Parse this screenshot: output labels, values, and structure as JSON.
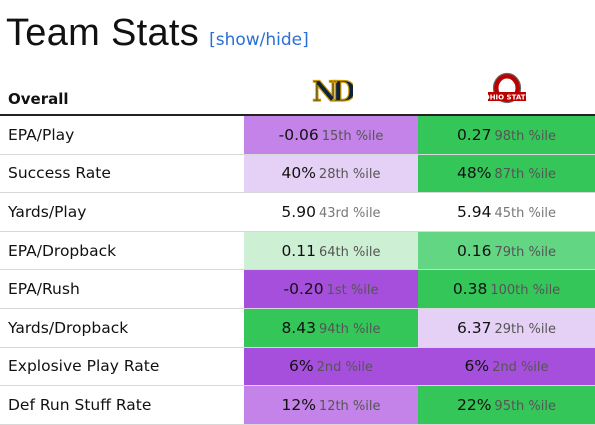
{
  "header": {
    "title": "Team Stats",
    "toggle_label": "[show/hide]"
  },
  "table": {
    "section_label": "Overall",
    "teams": [
      {
        "name": "Notre Dame",
        "logo": "nd-monogram",
        "logo_text": "ND"
      },
      {
        "name": "Ohio State",
        "logo": "osu-block-o",
        "logo_text": "OHIO STATE"
      }
    ],
    "rows": [
      {
        "label": "EPA/Play",
        "cells": [
          {
            "value": "-0.06",
            "pct": "15th %ile",
            "color": "#c383e8"
          },
          {
            "value": "0.27",
            "pct": "98th %ile",
            "color": "#35c65a"
          }
        ]
      },
      {
        "label": "Success Rate",
        "cells": [
          {
            "value": "40%",
            "pct": "28th %ile",
            "color": "#e6d1f6"
          },
          {
            "value": "48%",
            "pct": "87th %ile",
            "color": "#35c65a"
          }
        ]
      },
      {
        "label": "Yards/Play",
        "cells": [
          {
            "value": "5.90",
            "pct": "43rd %ile",
            "color": "#ffffff"
          },
          {
            "value": "5.94",
            "pct": "45th %ile",
            "color": "#ffffff"
          }
        ]
      },
      {
        "label": "EPA/Dropback",
        "cells": [
          {
            "value": "0.11",
            "pct": "64th %ile",
            "color": "#cdf0d5"
          },
          {
            "value": "0.16",
            "pct": "79th %ile",
            "color": "#63d684"
          }
        ]
      },
      {
        "label": "EPA/Rush",
        "cells": [
          {
            "value": "-0.20",
            "pct": "1st %ile",
            "color": "#a64fdc"
          },
          {
            "value": "0.38",
            "pct": "100th %ile",
            "color": "#35c65a"
          }
        ]
      },
      {
        "label": "Yards/Dropback",
        "cells": [
          {
            "value": "8.43",
            "pct": "94th %ile",
            "color": "#35c65a"
          },
          {
            "value": "6.37",
            "pct": "29th %ile",
            "color": "#e6d1f6"
          }
        ]
      },
      {
        "label": "Explosive Play Rate",
        "cells": [
          {
            "value": "6%",
            "pct": "2nd %ile",
            "color": "#a64fdc"
          },
          {
            "value": "6%",
            "pct": "2nd %ile",
            "color": "#a64fdc"
          }
        ]
      },
      {
        "label": "Def Run Stuff Rate",
        "cells": [
          {
            "value": "12%",
            "pct": "12th %ile",
            "color": "#c383e8"
          },
          {
            "value": "22%",
            "pct": "95th %ile",
            "color": "#35c65a"
          }
        ]
      }
    ]
  }
}
